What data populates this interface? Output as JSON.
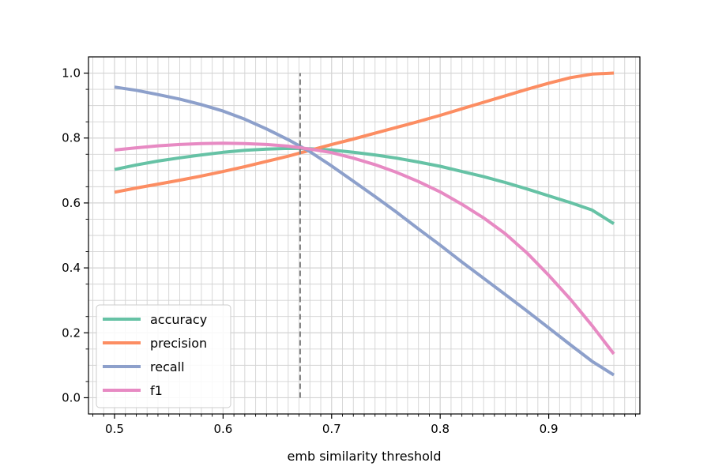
{
  "chart_data": {
    "type": "line",
    "xlabel": "emb similarity threshold",
    "ylabel": "",
    "xlim": [
      0.476,
      0.984
    ],
    "ylim": [
      -0.05,
      1.05
    ],
    "x_ticks": [
      0.5,
      0.6,
      0.7,
      0.8,
      0.9
    ],
    "x_tick_labels": [
      "0.5",
      "0.6",
      "0.7",
      "0.8",
      "0.9"
    ],
    "y_ticks": [
      0.0,
      0.2,
      0.4,
      0.6,
      0.8,
      1.0
    ],
    "y_tick_labels": [
      "0.0",
      "0.2",
      "0.4",
      "0.6",
      "0.8",
      "1.0"
    ],
    "grid": true,
    "minor_grid": true,
    "legend_position": "lower-left",
    "threshold_line": {
      "x": 0.671,
      "y_range": [
        0.0,
        1.0
      ],
      "color": "#808080",
      "style": "dashed"
    },
    "x": [
      0.5,
      0.52,
      0.54,
      0.56,
      0.58,
      0.6,
      0.62,
      0.64,
      0.66,
      0.68,
      0.7,
      0.72,
      0.74,
      0.76,
      0.78,
      0.8,
      0.82,
      0.84,
      0.86,
      0.88,
      0.9,
      0.92,
      0.94,
      0.96
    ],
    "series": [
      {
        "name": "accuracy",
        "color": "#66c2a5",
        "values": [
          0.703,
          0.717,
          0.729,
          0.739,
          0.748,
          0.756,
          0.762,
          0.766,
          0.768,
          0.767,
          0.763,
          0.756,
          0.748,
          0.738,
          0.726,
          0.713,
          0.697,
          0.681,
          0.663,
          0.643,
          0.622,
          0.601,
          0.578,
          0.536
        ]
      },
      {
        "name": "precision",
        "color": "#fc8d62",
        "values": [
          0.633,
          0.646,
          0.658,
          0.67,
          0.683,
          0.697,
          0.712,
          0.728,
          0.744,
          0.762,
          0.78,
          0.797,
          0.815,
          0.833,
          0.851,
          0.87,
          0.89,
          0.91,
          0.93,
          0.95,
          0.969,
          0.986,
          0.997,
          1.0
        ]
      },
      {
        "name": "recall",
        "color": "#8da0cb",
        "values": [
          0.957,
          0.947,
          0.934,
          0.92,
          0.903,
          0.883,
          0.858,
          0.828,
          0.795,
          0.758,
          0.714,
          0.667,
          0.62,
          0.571,
          0.52,
          0.47,
          0.418,
          0.368,
          0.318,
          0.267,
          0.215,
          0.163,
          0.112,
          0.07
        ]
      },
      {
        "name": "f1",
        "color": "#e78ac3",
        "values": [
          0.763,
          0.77,
          0.776,
          0.78,
          0.783,
          0.784,
          0.783,
          0.78,
          0.775,
          0.766,
          0.755,
          0.738,
          0.718,
          0.694,
          0.666,
          0.634,
          0.596,
          0.554,
          0.505,
          0.446,
          0.377,
          0.303,
          0.222,
          0.135
        ]
      }
    ]
  }
}
